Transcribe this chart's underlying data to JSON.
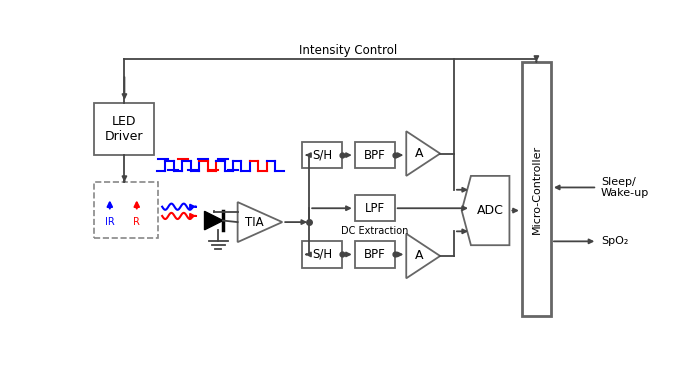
{
  "title": "Intensity Control",
  "background_color": "#ffffff",
  "line_color": "#444444",
  "block_edge_color": "#666666",
  "text_color": "#000000",
  "lpf_sublabel": "DC Extraction",
  "sleep_label": "Sleep/\nWake-up",
  "spo2_label": "SpO₂"
}
